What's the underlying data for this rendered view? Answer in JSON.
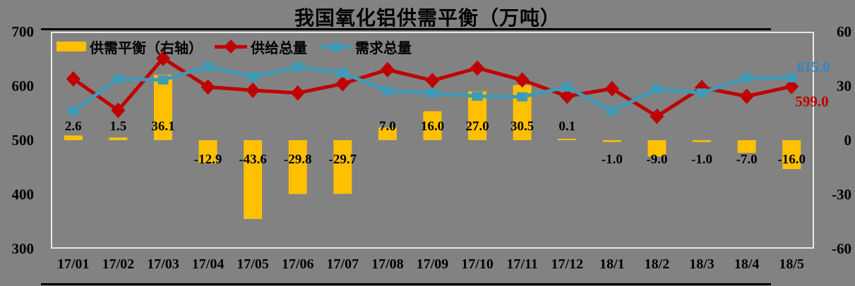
{
  "title": "我国氧化铝供需平衡（万吨）",
  "legend": {
    "balance": "供需平衡（右轴）",
    "supply": "供给总量",
    "demand": "需求总量"
  },
  "colors": {
    "background": "#828282",
    "bar": "#FFC000",
    "supply_line": "#C00000",
    "demand_line": "#3F9AB5",
    "demand_end_label": "#2E86C8",
    "supply_end_label": "#C00000",
    "plot_border": "#E8E8E8",
    "text": "#000000"
  },
  "chart_data": {
    "type": "bar+line combo",
    "categories": [
      "17/01",
      "17/02",
      "17/03",
      "17/04",
      "17/05",
      "17/06",
      "17/07",
      "17/08",
      "17/09",
      "17/10",
      "17/11",
      "17/12",
      "18/1",
      "18/2",
      "18/3",
      "18/4",
      "18/5"
    ],
    "series": [
      {
        "name": "供需平衡（右轴）",
        "type": "bar",
        "axis": "right",
        "color": "#FFC000",
        "values": [
          2.6,
          1.5,
          36.1,
          -12.9,
          -43.6,
          -29.8,
          -29.7,
          7.0,
          16.0,
          27.0,
          30.5,
          0.1,
          -1.0,
          -9.0,
          -1.0,
          -7.0,
          -16.0
        ],
        "labels": [
          "2.6",
          "1.5",
          "36.1",
          "-12.9",
          "-43.6",
          "-29.8",
          "-29.7",
          "7.0",
          "16.0",
          "27.0",
          "30.5",
          "0.1",
          "-1.0",
          "-9.0",
          "-1.0",
          "-7.0",
          "-16.0"
        ]
      },
      {
        "name": "供给总量",
        "type": "line",
        "marker": "diamond",
        "axis": "left",
        "color": "#C00000",
        "values": [
          613,
          555,
          651,
          598,
          592,
          587,
          604,
          630,
          610,
          633,
          611,
          581,
          595,
          544,
          597,
          581,
          599
        ]
      },
      {
        "name": "需求总量",
        "type": "line",
        "marker": "square",
        "axis": "left",
        "color": "#3F9AB5",
        "values": [
          554,
          613,
          611,
          636,
          617,
          635,
          624,
          591,
          587,
          581,
          580,
          598,
          554,
          594,
          587,
          615,
          615
        ]
      }
    ],
    "left_axis": {
      "range": [
        300,
        700
      ],
      "ticks": [
        "700",
        "600",
        "500",
        "400",
        "300"
      ],
      "tick_values": [
        700,
        600,
        500,
        400,
        300
      ]
    },
    "right_axis": {
      "range": [
        -60,
        60
      ],
      "ticks": [
        "60",
        "30",
        "0",
        "-30",
        "-60"
      ],
      "tick_values": [
        60,
        30,
        0,
        -30,
        -60
      ]
    },
    "end_labels": {
      "demand": "615.0",
      "supply": "599.0"
    },
    "legend_position": "top-left inside plot",
    "grid": "off"
  }
}
